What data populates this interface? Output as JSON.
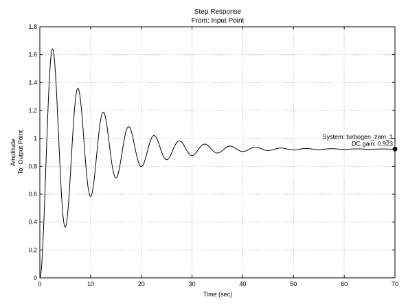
{
  "chart_data": {
    "type": "line",
    "title": "Step Response",
    "subtitle": "From: Input Point",
    "xlabel": "Time (sec)",
    "ylabel_line1": "Amplitude",
    "ylabel_line2": "To: Output Point",
    "xlim": [
      0,
      70
    ],
    "ylim": [
      0,
      1.8
    ],
    "xticks": [
      0,
      10,
      20,
      30,
      40,
      50,
      60,
      70
    ],
    "yticks": [
      0,
      0.2,
      0.4,
      0.6,
      0.8,
      1,
      1.2,
      1.4,
      1.6,
      1.8
    ],
    "grid": true,
    "series": [
      {
        "dc_gain": 0.923,
        "period_sec": 5.0,
        "decay_rate": 0.1,
        "peak_time_sec": 2.8,
        "peak_value": 1.63,
        "first_trough_sec": 5.3,
        "first_trough_value": 0.35,
        "color": "#000000"
      }
    ],
    "annotation": {
      "system_label": "System: turbogen_zam_1",
      "dc_gain_label": "DC gain: 0.923",
      "x": 70,
      "y": 0.923
    }
  }
}
